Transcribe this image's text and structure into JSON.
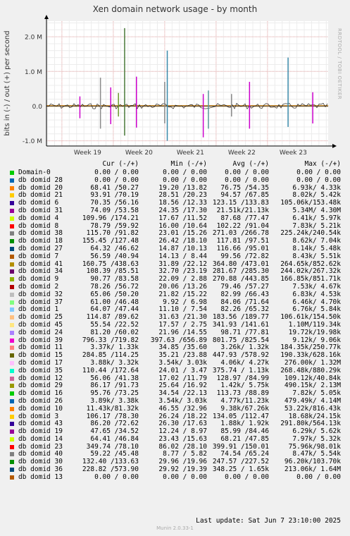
{
  "chart_data": {
    "type": "line",
    "title": "Xen domain network usage - by month",
    "ylabel": "bits in (-) / out (+) per second",
    "ylim": [
      -1150000,
      2450000
    ],
    "yticks": [
      {
        "value": 2000000,
        "label": "2.0 M"
      },
      {
        "value": 1000000,
        "label": "1.0 M"
      },
      {
        "value": 0,
        "label": "0.0"
      },
      {
        "value": -1000000,
        "label": "-1.0 M"
      }
    ],
    "xticks": [
      "Week 19",
      "Week 20",
      "Week 21",
      "Week 22",
      "Week 23"
    ],
    "grid": true,
    "spikes": [
      {
        "week": 19.35,
        "out": 280000,
        "in": -350000,
        "color": "#cc00cc"
      },
      {
        "week": 19.75,
        "out": 820000,
        "in": -650000,
        "color": "#8a8a8a"
      },
      {
        "week": 19.95,
        "out": 540000,
        "in": -520000,
        "color": "#cc00cc"
      },
      {
        "week": 20.1,
        "out": 380000,
        "in": -300000,
        "color": "#6a9a2a"
      },
      {
        "week": 20.22,
        "out": 2250000,
        "in": -850000,
        "color": "#4a7a3a"
      },
      {
        "week": 20.45,
        "out": 850000,
        "in": -620000,
        "color": "#cc00cc"
      },
      {
        "week": 21.0,
        "out": 700000,
        "in": -500000,
        "color": "#888888"
      },
      {
        "week": 21.05,
        "out": 1600000,
        "in": -1000000,
        "color": "#3a8aaa"
      },
      {
        "week": 21.75,
        "out": 350000,
        "in": -900000,
        "color": "#cc00cc"
      },
      {
        "week": 21.85,
        "out": 450000,
        "in": -650000,
        "color": "#5a9a9a"
      },
      {
        "week": 22.3,
        "out": 350000,
        "in": -300000,
        "color": "#888888"
      },
      {
        "week": 22.65,
        "out": 700000,
        "in": -650000,
        "color": "#cc00cc"
      },
      {
        "week": 23.4,
        "out": 1400000,
        "in": -600000,
        "color": "#3a8aaa"
      },
      {
        "week": 23.88,
        "out": 400000,
        "in": -500000,
        "color": "#cc00cc"
      }
    ],
    "bands": [
      {
        "out": 28000,
        "in": -18000,
        "color": "#ff8800"
      },
      {
        "out": 12000,
        "in": -10000,
        "color": "#006600"
      },
      {
        "out": 6000,
        "in": -5000,
        "color": "#7a3aaa"
      }
    ],
    "week_range": [
      18.7,
      24.18
    ]
  },
  "legend_header": {
    "cur": "Cur (-/+)",
    "min": "Min (-/+)",
    "avg": "Avg (-/+)",
    "max": "Max (-/+)"
  },
  "series": [
    {
      "name": "Domain-0",
      "color": "#00cc00",
      "cur": "0.00 / 0.00",
      "min": "0.00 / 0.00",
      "avg": "0.00 / 0.00",
      "max": "0.00 / 0.00"
    },
    {
      "name": "db domid 28",
      "color": "#0066b3",
      "cur": "0.00 / 0.00",
      "min": "0.00 / 0.00",
      "avg": "0.00 / 0.00",
      "max": "0.00 / 0.00"
    },
    {
      "name": "db domid 20",
      "color": "#ff8000",
      "cur": "68.41 /50.27",
      "min": "19.20 /13.82",
      "avg": "76.75 /54.35",
      "max": "6.93k/ 4.33k"
    },
    {
      "name": "db domid 21",
      "color": "#ffcc00",
      "cur": "93.91 /70.19",
      "min": "28.51 /20.23",
      "avg": "94.57 /67.85",
      "max": "8.02k/ 5.42k"
    },
    {
      "name": "db domid 6",
      "color": "#330099",
      "cur": "70.35 /56.16",
      "min": "18.56 /12.33",
      "avg": "123.15 /133.83",
      "max": "105.06k/153.48k"
    },
    {
      "name": "db domid 31",
      "color": "#990099",
      "cur": "74.09 /53.58",
      "min": "24.35 /17.30",
      "avg": "21.51k/21.13k",
      "max": "5.34M/ 4.30M"
    },
    {
      "name": "db domid 4",
      "color": "#ccff00",
      "cur": "109.96 /174.21",
      "min": "17.67 /11.52",
      "avg": "87.68 /77.47",
      "max": "6.41k/ 5.97k"
    },
    {
      "name": "db domid 8",
      "color": "#ff0000",
      "cur": "78.79 /59.92",
      "min": "16.00 /10.64",
      "avg": "102.22 /91.04",
      "max": "7.83k/ 5.21k"
    },
    {
      "name": "db domid 38",
      "color": "#808080",
      "cur": "115.70 /91.82",
      "min": "23.01 /15.26",
      "avg": "271.03 /266.78",
      "max": "225.24k/240.54k"
    },
    {
      "name": "db domid 18",
      "color": "#008f00",
      "cur": "155.45 /127.48",
      "min": "26.42 /18.10",
      "avg": "117.81 /97.51",
      "max": "8.62k/ 7.04k"
    },
    {
      "name": "db domid 27",
      "color": "#00487d",
      "cur": "64.32 /46.62",
      "min": "14.87 /10.13",
      "avg": "116.66 /95.01",
      "max": "8.14k/ 5.48k"
    },
    {
      "name": "db domid 7",
      "color": "#b35a00",
      "cur": "56.59 /40.94",
      "min": "14.13 / 8.44",
      "avg": "99.56 /72.82",
      "max": "8.43k/ 5.51k"
    },
    {
      "name": "db domid 41",
      "color": "#b38f00",
      "cur": "160.75 /438.63",
      "min": "31.89 /22.12",
      "avg": "364.80 /473.01",
      "max": "264.65k/852.62k"
    },
    {
      "name": "db domid 34",
      "color": "#6b006b",
      "cur": "108.39 /85.51",
      "min": "32.70 /23.19",
      "avg": "281.67 /285.30",
      "max": "244.02k/267.32k"
    },
    {
      "name": "db domid 9",
      "color": "#8fb300",
      "cur": "90.77 /83.58",
      "min": "22.09 / 2.88",
      "avg": "270.88 /443.85",
      "max": "166.85k/851.71k"
    },
    {
      "name": "db domid 2",
      "color": "#b30000",
      "cur": "78.26 /56.72",
      "min": "20.06 /13.26",
      "avg": "79.46 /57.27",
      "max": "7.53k/ 4.67k"
    },
    {
      "name": "db domid 32",
      "color": "#bebebe",
      "cur": "65.06 /50.20",
      "min": "21.82 /15.22",
      "avg": "82.99 /66.43",
      "max": "6.83k/ 4.53k"
    },
    {
      "name": "db domid 37",
      "color": "#80ff80",
      "cur": "61.00 /46.48",
      "min": "9.92 / 6.98",
      "avg": "84.06 /71.64",
      "max": "6.46k/ 4.70k"
    },
    {
      "name": "db domid 1",
      "color": "#80c9ff",
      "cur": "64.07 /47.44",
      "min": "11.10 / 7.54",
      "avg": "82.26 /65.32",
      "max": "6.76k/ 5.84k"
    },
    {
      "name": "db domid 25",
      "color": "#ffc080",
      "cur": "114.87 /89.62",
      "min": "31.63 /21.30",
      "avg": "183.56 /189.77",
      "max": "106.61k/154.50k"
    },
    {
      "name": "db domid 45",
      "color": "#ffe680",
      "cur": "55.54 /22.52",
      "min": "17.57 / 2.75",
      "avg": "341.93 /141.61",
      "max": "1.10M/119.34k"
    },
    {
      "name": "db domid 24",
      "color": "#aa80ff",
      "cur": "81.20 /60.02",
      "min": "21.96 /14.55",
      "avg": "98.71 /77.81",
      "max": "19.72k/19.98k"
    },
    {
      "name": "db domid 39",
      "color": "#ee00cc",
      "cur": "796.33 /719.82",
      "min": "397.63 /656.89",
      "avg": "801.75 /825.54",
      "max": "9.12k/ 9.06k"
    },
    {
      "name": "db domid 11",
      "color": "#ff8080",
      "cur": "3.37k/ 1.33k",
      "min": "34.85 /35.60",
      "avg": "3.26k/ 1.32k",
      "max": "184.35k/250.77k"
    },
    {
      "name": "db domid 15",
      "color": "#666600",
      "cur": "284.85 /114.25",
      "min": "35.21 /23.88",
      "avg": "447.93 /578.92",
      "max": "190.33k/628.16k"
    },
    {
      "name": "db domid 17",
      "color": "#ffbfff",
      "cur": "3.88k/ 3.32k",
      "min": "3.54k/ 3.03k",
      "avg": "4.06k/ 4.27k",
      "max": "276.00k/ 1.32M"
    },
    {
      "name": "db domid 35",
      "color": "#00ffcc",
      "cur": "110.44 /172.64",
      "min": "24.01 / 3.47",
      "avg": "375.74 / 1.13k",
      "max": "268.48k/880.29k"
    },
    {
      "name": "db domid 12",
      "color": "#cc6699",
      "cur": "56.06 /41.38",
      "min": "17.02 /11.79",
      "avg": "128.97 /84.99",
      "max": "109.12k/40.84k"
    },
    {
      "name": "db domid 29",
      "color": "#999900",
      "cur": "86.17 /91.73",
      "min": "25.64 /16.92",
      "avg": "1.42k/ 5.75k",
      "max": "490.15k/ 2.13M"
    },
    {
      "name": "db domid 16",
      "color": "#00cc00",
      "cur": "95.76 /73.25",
      "min": "34.54 /22.13",
      "avg": "113.73 /88.89",
      "max": "7.82k/ 5.05k"
    },
    {
      "name": "db domid 26",
      "color": "#0066b3",
      "cur": "3.89k/ 3.38k",
      "min": "3.54k/ 3.03k",
      "avg": "4.77k/11.23k",
      "max": "479.49k/ 4.14M"
    },
    {
      "name": "db domid 10",
      "color": "#ff8000",
      "cur": "11.43k/81.32k",
      "min": "46.55 /32.96",
      "avg": "9.38k/67.26k",
      "max": "53.22k/816.43k"
    },
    {
      "name": "db domid 3",
      "color": "#ffcc00",
      "cur": "106.17 /78.30",
      "min": "26.24 /18.22",
      "avg": "134.05 /112.47",
      "max": "18.68k/24.15k"
    },
    {
      "name": "db domid 43",
      "color": "#330099",
      "cur": "86.20 /72.62",
      "min": "26.30 /17.63",
      "avg": "1.88k/ 1.92k",
      "max": "291.80k/564.13k"
    },
    {
      "name": "db domid 19",
      "color": "#990099",
      "cur": "47.65 /34.52",
      "min": "12.24 / 8.97",
      "avg": "85.99 /84.46",
      "max": "6.29k/ 5.62k"
    },
    {
      "name": "db domid 14",
      "color": "#ccff00",
      "cur": "64.41 /46.84",
      "min": "23.43 /15.63",
      "avg": "68.21 /47.85",
      "max": "7.97k/ 5.32k"
    },
    {
      "name": "db domid 23",
      "color": "#ff0000",
      "cur": "349.74 /78.10",
      "min": "86.02 /28.10",
      "avg": "399.91 /150.01",
      "max": "75.96k/98.01k"
    },
    {
      "name": "db domid 40",
      "color": "#808080",
      "cur": "59.22 /45.48",
      "min": "8.77 / 5.82",
      "avg": "74.54 /65.24",
      "max": "8.47k/ 5.54k"
    },
    {
      "name": "db domid 30",
      "color": "#008f00",
      "cur": "132.40 /133.63",
      "min": "29.96 /19.96",
      "avg": "247.57 /227.52",
      "max": "96.20k/103.70k"
    },
    {
      "name": "db domid 36",
      "color": "#00487d",
      "cur": "228.82 /573.90",
      "min": "29.92 /19.39",
      "avg": "348.25 / 1.65k",
      "max": "213.06k/ 1.64M"
    },
    {
      "name": "db domid 13",
      "color": "#b35a00",
      "cur": "0.00 / 0.00",
      "min": "0.00 / 0.00",
      "avg": "0.00 / 0.00",
      "max": "0.00 / 0.00"
    }
  ],
  "footer": {
    "last_update": "Last update:  Sat Jun  7 23:10:00 2025",
    "version": "Munin 2.0.33-1"
  },
  "watermark": "RRDTOOL / TOBI OETIKER"
}
